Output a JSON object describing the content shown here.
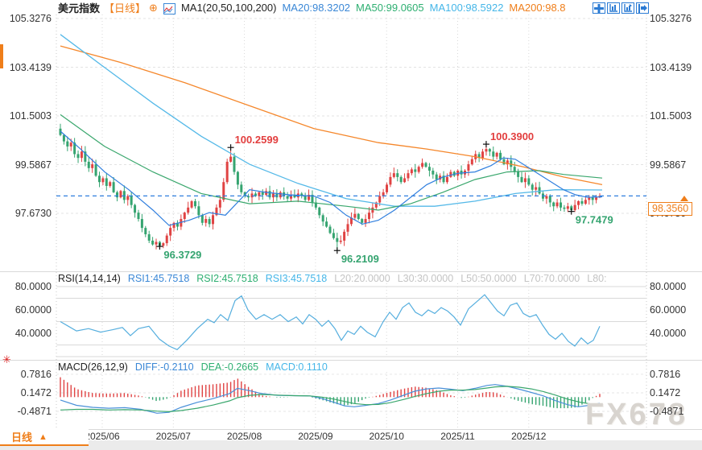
{
  "header": {
    "title": "美元指数",
    "period": "【日线】",
    "plus_icon": "⊕",
    "ma_group": "MA1(20,50,100,200)",
    "ma20": "MA20:98.3202",
    "ma50": "MA50:99.0605",
    "ma100": "MA100:98.5922",
    "ma200": "MA200:98.8"
  },
  "toolbar": {
    "icons": [
      "crosshair",
      "scale-y-axis",
      "scale-x-axis",
      "go-to-latest"
    ]
  },
  "price_axis": {
    "labels": [
      "105.3276",
      "103.4139",
      "101.5003",
      "99.5867",
      "97.6730"
    ],
    "current_price": "98.3560"
  },
  "rsi_panel": {
    "name": "RSI(14,14,14)",
    "rsi1": "RSI1:45.7518",
    "rsi2": "RSI2:45.7518",
    "rsi3": "RSI3:45.7518",
    "l20": "L20:20.0000",
    "l30": "L30:30.0000",
    "l50": "L50:50.0000",
    "l70": "L70:70.0000",
    "l80": "L80:",
    "axis_labels": [
      "80.0000",
      "60.0000",
      "40.0000"
    ]
  },
  "macd_panel": {
    "name": "MACD(26,12,9)",
    "diff": "DIFF:-0.2110",
    "dea": "DEA:-0.2665",
    "macd": "MACD:0.1110",
    "axis_labels": [
      "0.7816",
      "0.1472",
      "-0.4871"
    ]
  },
  "dates": [
    "2025/06",
    "2025/07",
    "2025/08",
    "2025/09",
    "2025/10",
    "2025/11",
    "2025/12"
  ],
  "bottom_tab": {
    "label": "日线",
    "arrow": "▲"
  },
  "watermark": "FX678",
  "colors": {
    "up_candle": "#e04343",
    "down_candle": "#35a470",
    "ma20": "#2f7ede",
    "ma50": "#3aa76d",
    "ma100": "#55b9e8",
    "ma200": "#f5872b",
    "accent_orange": "#ef7e1a",
    "rsi_line": "#55aede",
    "diff_line": "#4a90d9",
    "dea_line": "#3aa76d",
    "marker_high": "#e23e3e",
    "marker_low": "#35a470"
  },
  "chart_data": {
    "type": "candlestick",
    "title": "美元指数 日线",
    "x_range_dates": [
      "2025/05",
      "2025/12"
    ],
    "price_axis_values": [
      105.3276,
      103.4139,
      101.5003,
      99.5867,
      97.673
    ],
    "current_price": 98.356,
    "closes": [
      100.75,
      100.5,
      100.3,
      100.45,
      100.0,
      99.85,
      100.1,
      99.7,
      99.45,
      99.6,
      99.15,
      98.9,
      99.05,
      98.75,
      98.9,
      98.5,
      98.3,
      98.55,
      98.2,
      98.35,
      98.0,
      97.7,
      97.45,
      97.1,
      96.85,
      96.6,
      96.45,
      96.55,
      96.4,
      96.5,
      96.8,
      97.1,
      97.3,
      97.15,
      97.45,
      97.7,
      97.9,
      98.15,
      97.95,
      97.6,
      97.3,
      97.45,
      97.25,
      97.6,
      97.9,
      98.2,
      98.9,
      99.7,
      99.9,
      99.3,
      98.8,
      98.5,
      98.35,
      98.3,
      98.45,
      98.35,
      98.5,
      98.4,
      98.55,
      98.3,
      98.45,
      98.3,
      98.5,
      98.35,
      98.25,
      98.4,
      98.3,
      98.45,
      98.35,
      98.2,
      98.4,
      98.1,
      97.9,
      97.6,
      97.35,
      97.15,
      96.9,
      96.7,
      96.55,
      96.6,
      96.95,
      97.25,
      97.5,
      97.65,
      97.45,
      97.3,
      97.45,
      97.7,
      97.9,
      98.1,
      98.35,
      98.5,
      98.8,
      99.1,
      99.25,
      99.1,
      98.9,
      99.05,
      99.25,
      99.4,
      99.3,
      99.5,
      99.65,
      99.5,
      99.35,
      99.2,
      99.0,
      99.15,
      98.9,
      99.1,
      99.3,
      99.15,
      99.35,
      99.2,
      99.35,
      99.6,
      99.8,
      100.0,
      99.85,
      100.1,
      100.2,
      100.1,
      99.9,
      100.05,
      99.8,
      99.6,
      99.75,
      99.5,
      99.3,
      99.1,
      98.9,
      99.05,
      98.8,
      98.6,
      98.7,
      98.45,
      98.25,
      98.35,
      98.1,
      97.95,
      98.1,
      97.9,
      97.85,
      97.95,
      97.8,
      98.0,
      98.15,
      98.05,
      98.2,
      98.3,
      98.2,
      98.3,
      98.36
    ],
    "extreme_overrides": {
      "28": {
        "low": 96.3729
      },
      "48": {
        "high": 100.2599
      },
      "78": {
        "low": 96.2109
      },
      "120": {
        "high": 100.39
      },
      "144": {
        "low": 97.7479
      }
    },
    "markers": [
      {
        "i": 28,
        "pos": "low",
        "text": "96.3729",
        "color": "#35a470"
      },
      {
        "i": 48,
        "pos": "high",
        "text": "100.2599",
        "color": "#e23e3e"
      },
      {
        "i": 78,
        "pos": "low",
        "text": "96.2109",
        "color": "#35a470"
      },
      {
        "i": 120,
        "pos": "high",
        "text": "100.3900",
        "color": "#e23e3e"
      },
      {
        "i": 144,
        "pos": "low",
        "text": "97.7479",
        "color": "#35a470"
      }
    ],
    "ma20": [
      [
        75,
        100.9
      ],
      [
        100,
        100.2
      ],
      [
        130,
        99.3
      ],
      [
        160,
        98.6
      ],
      [
        190,
        97.8
      ],
      [
        210,
        97.2
      ],
      [
        235,
        97.4
      ],
      [
        260,
        97.7
      ],
      [
        280,
        97.6
      ],
      [
        295,
        98.1
      ],
      [
        310,
        98.6
      ],
      [
        330,
        98.5
      ],
      [
        360,
        98.4
      ],
      [
        390,
        98.35
      ],
      [
        410,
        98.1
      ],
      [
        430,
        97.6
      ],
      [
        450,
        97.25
      ],
      [
        470,
        97.4
      ],
      [
        490,
        97.8
      ],
      [
        510,
        98.3
      ],
      [
        530,
        98.8
      ],
      [
        550,
        99.1
      ],
      [
        570,
        99.25
      ],
      [
        590,
        99.3
      ],
      [
        610,
        99.55
      ],
      [
        625,
        99.85
      ],
      [
        640,
        99.8
      ],
      [
        655,
        99.5
      ],
      [
        670,
        99.2
      ],
      [
        685,
        98.9
      ],
      [
        700,
        98.6
      ],
      [
        715,
        98.4
      ],
      [
        730,
        98.3
      ],
      [
        748,
        98.32
      ]
    ],
    "ma50": [
      [
        75,
        101.55
      ],
      [
        130,
        100.3
      ],
      [
        190,
        99.3
      ],
      [
        250,
        98.45
      ],
      [
        310,
        98.05
      ],
      [
        370,
        98.15
      ],
      [
        430,
        97.95
      ],
      [
        470,
        97.8
      ],
      [
        510,
        98.05
      ],
      [
        550,
        98.5
      ],
      [
        590,
        99.0
      ],
      [
        630,
        99.3
      ],
      [
        670,
        99.35
      ],
      [
        700,
        99.2
      ],
      [
        748,
        99.06
      ]
    ],
    "ma100": [
      [
        75,
        104.7
      ],
      [
        130,
        103.4
      ],
      [
        190,
        102.0
      ],
      [
        250,
        100.7
      ],
      [
        310,
        99.6
      ],
      [
        370,
        98.85
      ],
      [
        430,
        98.25
      ],
      [
        490,
        97.95
      ],
      [
        540,
        97.95
      ],
      [
        590,
        98.15
      ],
      [
        640,
        98.45
      ],
      [
        690,
        98.6
      ],
      [
        748,
        98.59
      ]
    ],
    "ma200": [
      [
        75,
        104.25
      ],
      [
        150,
        103.6
      ],
      [
        230,
        102.8
      ],
      [
        310,
        101.9
      ],
      [
        390,
        101.0
      ],
      [
        470,
        100.45
      ],
      [
        530,
        100.2
      ],
      [
        590,
        99.9
      ],
      [
        650,
        99.5
      ],
      [
        700,
        99.1
      ],
      [
        748,
        98.8
      ]
    ],
    "rsi": {
      "current": 45.7518,
      "levels": [
        20,
        30,
        50,
        70,
        80
      ],
      "axis": [
        80,
        60,
        40
      ],
      "points": [
        [
          75,
          50
        ],
        [
          85,
          46
        ],
        [
          95,
          42
        ],
        [
          110,
          44
        ],
        [
          125,
          41
        ],
        [
          140,
          43
        ],
        [
          152,
          45
        ],
        [
          162,
          38
        ],
        [
          172,
          44
        ],
        [
          185,
          46
        ],
        [
          198,
          35
        ],
        [
          210,
          29
        ],
        [
          220,
          26
        ],
        [
          232,
          34
        ],
        [
          245,
          44
        ],
        [
          258,
          52
        ],
        [
          266,
          49
        ],
        [
          274,
          56
        ],
        [
          283,
          51
        ],
        [
          292,
          68
        ],
        [
          300,
          72
        ],
        [
          308,
          60
        ],
        [
          318,
          52
        ],
        [
          328,
          56
        ],
        [
          338,
          52
        ],
        [
          348,
          56
        ],
        [
          358,
          50
        ],
        [
          368,
          54
        ],
        [
          376,
          48
        ],
        [
          384,
          56
        ],
        [
          392,
          52
        ],
        [
          400,
          46
        ],
        [
          408,
          51
        ],
        [
          416,
          44
        ],
        [
          424,
          34
        ],
        [
          432,
          42
        ],
        [
          440,
          39
        ],
        [
          448,
          46
        ],
        [
          456,
          41
        ],
        [
          466,
          37
        ],
        [
          476,
          50
        ],
        [
          484,
          58
        ],
        [
          492,
          52
        ],
        [
          500,
          62
        ],
        [
          508,
          66
        ],
        [
          516,
          58
        ],
        [
          524,
          55
        ],
        [
          532,
          60
        ],
        [
          540,
          57
        ],
        [
          548,
          62
        ],
        [
          556,
          59
        ],
        [
          564,
          54
        ],
        [
          572,
          47
        ],
        [
          582,
          61
        ],
        [
          592,
          67
        ],
        [
          602,
          73
        ],
        [
          610,
          66
        ],
        [
          618,
          59
        ],
        [
          626,
          55
        ],
        [
          634,
          64
        ],
        [
          642,
          66
        ],
        [
          650,
          57
        ],
        [
          658,
          54
        ],
        [
          666,
          56
        ],
        [
          674,
          47
        ],
        [
          682,
          39
        ],
        [
          690,
          35
        ],
        [
          698,
          40
        ],
        [
          706,
          33
        ],
        [
          714,
          29
        ],
        [
          722,
          36
        ],
        [
          730,
          31
        ],
        [
          737,
          34
        ],
        [
          745,
          46
        ]
      ]
    },
    "macd": {
      "diff_current": -0.211,
      "dea_current": -0.2665,
      "hist_current": 0.111,
      "axis": [
        0.7816,
        0.1472,
        -0.4871
      ],
      "diff": [
        [
          75,
          -0.1
        ],
        [
          95,
          -0.28
        ],
        [
          115,
          -0.35
        ],
        [
          135,
          -0.38
        ],
        [
          155,
          -0.36
        ],
        [
          175,
          -0.42
        ],
        [
          195,
          -0.55
        ],
        [
          210,
          -0.52
        ],
        [
          225,
          -0.35
        ],
        [
          245,
          -0.18
        ],
        [
          265,
          -0.05
        ],
        [
          285,
          0.12
        ],
        [
          295,
          0.3
        ],
        [
          310,
          0.22
        ],
        [
          325,
          0.12
        ],
        [
          345,
          0.06
        ],
        [
          365,
          0.05
        ],
        [
          385,
          0.04
        ],
        [
          400,
          -0.05
        ],
        [
          415,
          -0.18
        ],
        [
          428,
          -0.3
        ],
        [
          440,
          -0.33
        ],
        [
          455,
          -0.28
        ],
        [
          470,
          -0.22
        ],
        [
          485,
          -0.1
        ],
        [
          500,
          0.05
        ],
        [
          515,
          0.2
        ],
        [
          530,
          0.28
        ],
        [
          545,
          0.31
        ],
        [
          560,
          0.27
        ],
        [
          575,
          0.22
        ],
        [
          590,
          0.3
        ],
        [
          605,
          0.4
        ],
        [
          615,
          0.43
        ],
        [
          630,
          0.37
        ],
        [
          645,
          0.27
        ],
        [
          660,
          0.16
        ],
        [
          675,
          0.04
        ],
        [
          690,
          -0.12
        ],
        [
          705,
          -0.26
        ],
        [
          718,
          -0.33
        ],
        [
          732,
          -0.28
        ],
        [
          745,
          -0.211
        ]
      ],
      "dea": [
        [
          75,
          -0.44
        ],
        [
          95,
          -0.42
        ],
        [
          115,
          -0.42
        ],
        [
          135,
          -0.44
        ],
        [
          155,
          -0.43
        ],
        [
          175,
          -0.44
        ],
        [
          195,
          -0.48
        ],
        [
          210,
          -0.5
        ],
        [
          225,
          -0.46
        ],
        [
          245,
          -0.38
        ],
        [
          265,
          -0.27
        ],
        [
          285,
          -0.13
        ],
        [
          295,
          -0.02
        ],
        [
          310,
          0.06
        ],
        [
          325,
          0.09
        ],
        [
          345,
          0.07
        ],
        [
          365,
          0.05
        ],
        [
          385,
          0.04
        ],
        [
          400,
          0.0
        ],
        [
          415,
          -0.07
        ],
        [
          428,
          -0.15
        ],
        [
          440,
          -0.22
        ],
        [
          455,
          -0.26
        ],
        [
          470,
          -0.25
        ],
        [
          485,
          -0.19
        ],
        [
          500,
          -0.09
        ],
        [
          515,
          0.02
        ],
        [
          530,
          0.12
        ],
        [
          545,
          0.2
        ],
        [
          560,
          0.24
        ],
        [
          575,
          0.24
        ],
        [
          590,
          0.26
        ],
        [
          605,
          0.31
        ],
        [
          615,
          0.35
        ],
        [
          630,
          0.37
        ],
        [
          645,
          0.34
        ],
        [
          660,
          0.28
        ],
        [
          675,
          0.19
        ],
        [
          690,
          0.07
        ],
        [
          705,
          -0.07
        ],
        [
          720,
          -0.17
        ],
        [
          735,
          -0.24
        ],
        [
          745,
          -0.2665
        ]
      ]
    }
  }
}
